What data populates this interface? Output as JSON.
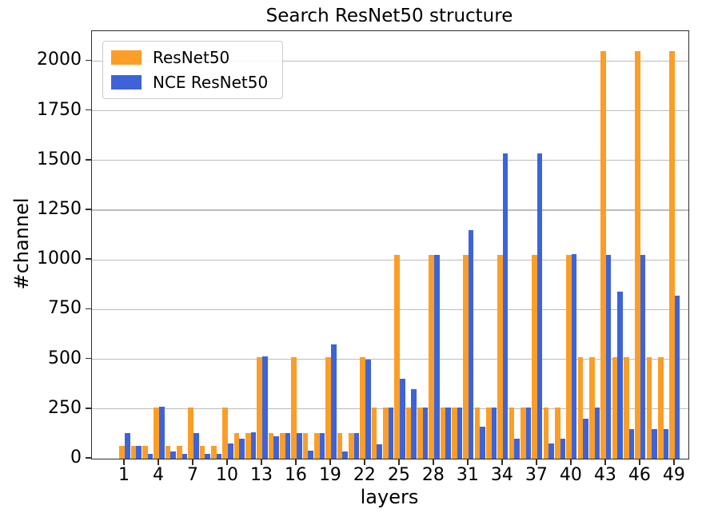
{
  "title": "Search ResNet50 structure",
  "chart_data": {
    "type": "bar",
    "title": "Search ResNet50 structure",
    "xlabel": "layers",
    "ylabel": "#channel",
    "categories": [
      1,
      2,
      3,
      4,
      5,
      6,
      7,
      8,
      9,
      10,
      11,
      12,
      13,
      14,
      15,
      16,
      17,
      18,
      19,
      20,
      21,
      22,
      23,
      24,
      25,
      26,
      27,
      28,
      29,
      30,
      31,
      32,
      33,
      34,
      35,
      36,
      37,
      38,
      39,
      40,
      41,
      42,
      43,
      44,
      45,
      46,
      47,
      48,
      49
    ],
    "series": [
      {
        "name": "ResNet50",
        "color": "#FA9E28",
        "values": [
          64,
          64,
          64,
          256,
          64,
          64,
          256,
          64,
          64,
          256,
          128,
          128,
          512,
          128,
          128,
          512,
          128,
          128,
          512,
          128,
          128,
          512,
          256,
          256,
          1024,
          256,
          256,
          1024,
          256,
          256,
          1024,
          256,
          256,
          1024,
          256,
          256,
          1024,
          256,
          256,
          1024,
          512,
          512,
          2048,
          512,
          512,
          2048,
          512,
          512,
          2048
        ]
      },
      {
        "name": "NCE ResNet50",
        "color": "#3E63D8",
        "values": [
          128,
          64,
          26,
          260,
          38,
          26,
          128,
          24,
          24,
          78,
          100,
          134,
          515,
          112,
          128,
          130,
          40,
          128,
          576,
          36,
          128,
          500,
          74,
          256,
          400,
          350,
          256,
          1024,
          256,
          256,
          1150,
          160,
          256,
          1536,
          100,
          256,
          1536,
          75,
          100,
          1030,
          200,
          256,
          1024,
          840,
          150,
          1024,
          150,
          150,
          820
        ]
      }
    ],
    "ylim": [
      0,
      2150
    ],
    "yticks": [
      0,
      250,
      500,
      750,
      1000,
      1250,
      1500,
      1750,
      2000
    ],
    "xtick_labels": [
      1,
      4,
      7,
      10,
      13,
      16,
      19,
      22,
      25,
      28,
      31,
      34,
      37,
      40,
      43,
      46,
      49
    ],
    "grid": true,
    "legend_position": "upper left"
  }
}
